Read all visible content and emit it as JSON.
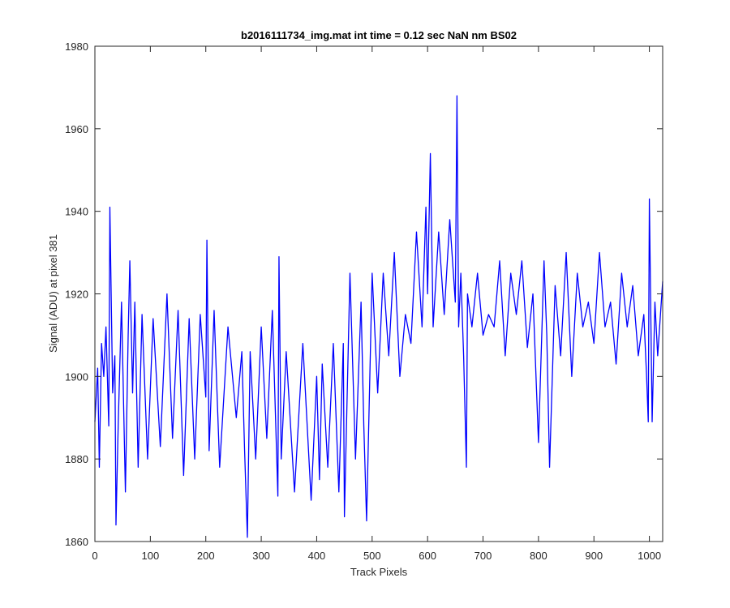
{
  "chart_data": {
    "type": "line",
    "title": "b2016111734_img.mat int time = 0.12 sec  NaN nm BS02",
    "xlabel": "Track Pixels",
    "ylabel": "Signal (ADU) at pixel 381",
    "xlim": [
      0,
      1024
    ],
    "ylim": [
      1860,
      1980
    ],
    "xticks": [
      0,
      100,
      200,
      300,
      400,
      500,
      600,
      700,
      800,
      900,
      1000
    ],
    "yticks": [
      1860,
      1880,
      1900,
      1920,
      1940,
      1960,
      1980
    ],
    "grid": false,
    "series": [
      {
        "color": "#0000ff",
        "x": [
          0,
          5,
          8,
          12,
          16,
          20,
          25,
          27,
          32,
          36,
          38,
          42,
          48,
          55,
          60,
          63,
          68,
          72,
          78,
          85,
          95,
          105,
          118,
          130,
          140,
          150,
          160,
          170,
          180,
          190,
          200,
          202,
          206,
          215,
          225,
          240,
          255,
          265,
          270,
          275,
          280,
          290,
          300,
          310,
          320,
          330,
          332,
          336,
          345,
          360,
          375,
          390,
          400,
          405,
          410,
          420,
          430,
          440,
          448,
          450,
          460,
          470,
          480,
          485,
          490,
          500,
          510,
          520,
          530,
          540,
          550,
          560,
          570,
          580,
          590,
          597,
          600,
          605,
          610,
          620,
          630,
          640,
          650,
          653,
          656,
          660,
          665,
          670,
          672,
          680,
          690,
          700,
          710,
          720,
          730,
          740,
          750,
          760,
          770,
          780,
          790,
          800,
          810,
          815,
          820,
          830,
          840,
          850,
          860,
          870,
          880,
          890,
          900,
          910,
          920,
          930,
          940,
          950,
          960,
          970,
          980,
          990,
          995,
          998,
          1000,
          1005,
          1010,
          1015,
          1020,
          1024
        ],
        "y": [
          1889,
          1902,
          1878,
          1908,
          1900,
          1912,
          1888,
          1941,
          1896,
          1905,
          1864,
          1888,
          1918,
          1872,
          1910,
          1928,
          1896,
          1918,
          1878,
          1915,
          1880,
          1914,
          1883,
          1920,
          1885,
          1916,
          1876,
          1914,
          1880,
          1915,
          1895,
          1933,
          1882,
          1916,
          1878,
          1912,
          1890,
          1906,
          1882,
          1861,
          1906,
          1880,
          1912,
          1885,
          1916,
          1871,
          1929,
          1880,
          1906,
          1872,
          1908,
          1870,
          1900,
          1875,
          1903,
          1878,
          1908,
          1872,
          1908,
          1866,
          1925,
          1880,
          1918,
          1888,
          1865,
          1925,
          1896,
          1925,
          1905,
          1930,
          1900,
          1915,
          1908,
          1935,
          1912,
          1941,
          1920,
          1954,
          1912,
          1935,
          1915,
          1938,
          1918,
          1968,
          1912,
          1925,
          1905,
          1878,
          1920,
          1912,
          1925,
          1910,
          1915,
          1912,
          1928,
          1905,
          1925,
          1915,
          1928,
          1907,
          1920,
          1884,
          1928,
          1910,
          1878,
          1922,
          1905,
          1930,
          1900,
          1925,
          1912,
          1918,
          1908,
          1930,
          1912,
          1918,
          1903,
          1925,
          1912,
          1922,
          1905,
          1915,
          1900,
          1889,
          1943,
          1889,
          1918,
          1905,
          1915,
          1923
        ]
      }
    ]
  }
}
